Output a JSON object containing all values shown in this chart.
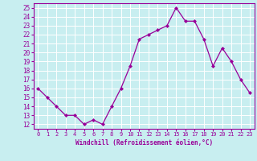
{
  "x": [
    0,
    1,
    2,
    3,
    4,
    5,
    6,
    7,
    8,
    9,
    10,
    11,
    12,
    13,
    14,
    15,
    16,
    17,
    18,
    19,
    20,
    21,
    22,
    23
  ],
  "y": [
    16,
    15,
    14,
    13,
    13,
    12,
    12.5,
    12,
    14,
    16,
    18.5,
    21.5,
    22,
    22.5,
    23,
    25,
    23.5,
    23.5,
    21.5,
    18.5,
    20.5,
    19,
    17,
    15.5
  ],
  "line_color": "#990099",
  "marker_color": "#990099",
  "bg_color": "#c8eef0",
  "grid_color": "#ffffff",
  "xlabel": "Windchill (Refroidissement éolien,°C)",
  "xlabel_color": "#990099",
  "ylabel_ticks": [
    12,
    13,
    14,
    15,
    16,
    17,
    18,
    19,
    20,
    21,
    22,
    23,
    24,
    25
  ],
  "xlim": [
    -0.5,
    23.5
  ],
  "ylim": [
    11.5,
    25.5
  ],
  "tick_color": "#990099"
}
